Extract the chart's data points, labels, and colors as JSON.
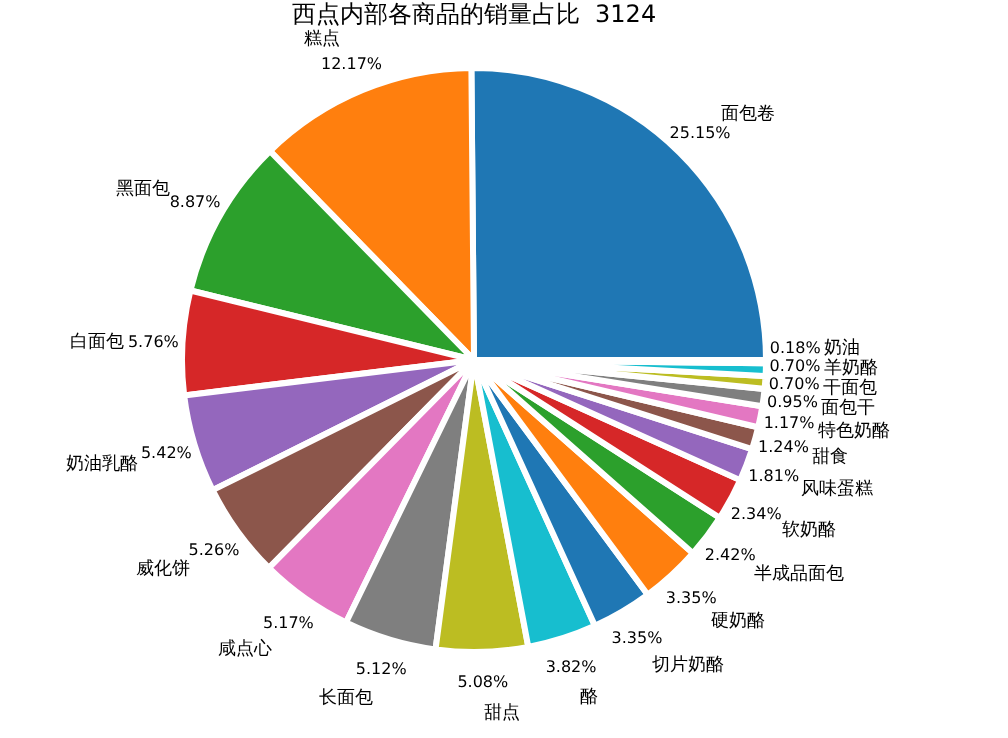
{
  "chart_data": {
    "type": "pie",
    "title": "西点内部各商品的销量占比  3124",
    "categories": [
      "面包卷",
      "糕点",
      "黑面包",
      "白面包",
      "奶油乳酪",
      "威化饼",
      "咸点心",
      "长面包",
      "甜点",
      "酪",
      "切片奶酪",
      "硬奶酪",
      "半成品面包",
      "软奶酪",
      "风味蛋糕",
      "甜食",
      "特色奶酪",
      "面包干",
      "干面包",
      "羊奶酪",
      "奶油"
    ],
    "values": [
      25.15,
      12.17,
      8.87,
      5.76,
      5.42,
      5.26,
      5.17,
      5.12,
      5.08,
      3.82,
      3.35,
      3.35,
      2.42,
      2.34,
      1.81,
      1.24,
      1.17,
      0.95,
      0.7,
      0.7,
      0.18
    ],
    "value_labels": [
      "25.15%",
      "12.17%",
      "8.87%",
      "5.76%",
      "5.42%",
      "5.26%",
      "5.17%",
      "5.12%",
      "5.08%",
      "3.82%",
      "3.35%",
      "3.35%",
      "2.42%",
      "2.34%",
      "1.81%",
      "1.24%",
      "1.17%",
      "0.95%",
      "0.70%",
      "0.70%",
      "0.18%"
    ],
    "colors": [
      "#1f77b4",
      "#ff7f0e",
      "#2ca02c",
      "#d62728",
      "#9467bd",
      "#8c564b",
      "#e377c2",
      "#7f7f7f",
      "#bcbd22",
      "#17becf",
      "#1f77b4",
      "#ff7f0e",
      "#2ca02c",
      "#d62728",
      "#9467bd",
      "#8c564b",
      "#e377c2",
      "#7f7f7f",
      "#bcbd22",
      "#17becf",
      "#1f77b4"
    ]
  }
}
